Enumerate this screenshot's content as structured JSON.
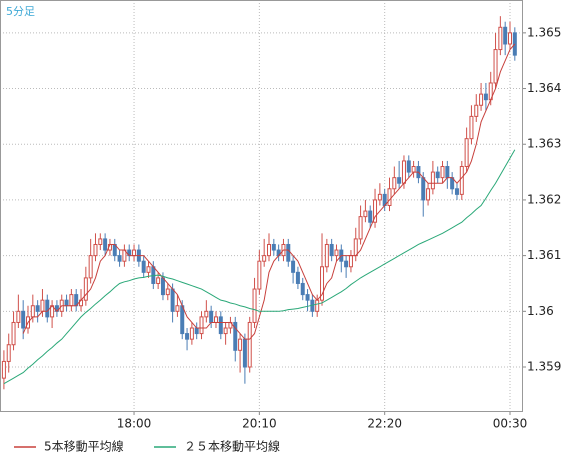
{
  "chart_data": {
    "type": "candlestick",
    "title": "5分足",
    "categories": [
      null,
      null,
      null,
      null,
      null,
      null,
      null,
      null,
      null,
      null,
      null,
      null,
      null,
      null,
      null,
      null,
      null,
      null,
      null,
      null,
      null,
      null,
      null,
      null,
      null,
      null,
      null,
      "18:00",
      null,
      null,
      null,
      null,
      null,
      null,
      null,
      null,
      null,
      null,
      null,
      null,
      null,
      null,
      null,
      null,
      null,
      null,
      null,
      null,
      null,
      null,
      null,
      null,
      null,
      "20:10",
      null,
      null,
      null,
      null,
      null,
      null,
      null,
      null,
      null,
      null,
      null,
      null,
      null,
      null,
      null,
      null,
      null,
      null,
      null,
      null,
      null,
      null,
      null,
      null,
      null,
      "22:20",
      null,
      null,
      null,
      null,
      null,
      null,
      null,
      null,
      null,
      null,
      null,
      null,
      null,
      null,
      null,
      null,
      null,
      null,
      null,
      null,
      null,
      null,
      null,
      null,
      null,
      "00:30",
      null
    ],
    "open": [
      1.3588,
      1.3591,
      1.3594,
      1.3598,
      1.36,
      1.3597,
      1.3599,
      1.3601,
      1.36,
      1.3602,
      1.3599,
      1.3601,
      1.36,
      1.3602,
      1.3601,
      1.3603,
      1.3601,
      1.3602,
      1.3606,
      1.361,
      1.3612,
      1.3613,
      1.3611,
      1.3612,
      1.361,
      1.3609,
      1.3611,
      1.361,
      1.3611,
      1.3609,
      1.3607,
      1.3608,
      1.3605,
      1.3606,
      1.3603,
      1.3604,
      1.36,
      1.3601,
      1.3596,
      1.3595,
      1.3597,
      1.3596,
      1.3599,
      1.36,
      1.3598,
      1.3599,
      1.3596,
      1.3597,
      1.3598,
      1.3593,
      1.3595,
      1.359,
      1.3598,
      1.3604,
      1.3609,
      1.361,
      1.3612,
      1.3611,
      1.361,
      1.3612,
      1.3609,
      1.3607,
      1.3605,
      1.3603,
      1.3602,
      1.36,
      1.3602,
      1.3608,
      1.3612,
      1.361,
      1.3611,
      1.3609,
      1.3608,
      1.361,
      1.3613,
      1.3617,
      1.3618,
      1.3616,
      1.362,
      1.3621,
      1.3619,
      1.3622,
      1.3624,
      1.3623,
      1.3627,
      1.3625,
      1.3626,
      1.3624,
      1.362,
      1.3622,
      1.3625,
      1.3624,
      1.3626,
      1.3624,
      1.3622,
      1.3621,
      1.3626,
      1.3631,
      1.3635,
      1.3637,
      1.3639,
      1.3638,
      1.3641,
      1.3647,
      1.3651,
      1.3648,
      1.365
    ],
    "high": [
      1.3593,
      1.3596,
      1.36,
      1.3603,
      1.3602,
      1.3601,
      1.3603,
      1.3602,
      1.3604,
      1.3603,
      1.3602,
      1.3602,
      1.3603,
      1.3603,
      1.3604,
      1.3604,
      1.3604,
      1.3608,
      1.3613,
      1.3614,
      1.3614,
      1.3614,
      1.3613,
      1.3613,
      1.3611,
      1.3612,
      1.3612,
      1.3612,
      1.3612,
      1.361,
      1.3609,
      1.3609,
      1.3607,
      1.3607,
      1.3605,
      1.3605,
      1.3603,
      1.3602,
      1.3597,
      1.3598,
      1.3598,
      1.36,
      1.3602,
      1.3601,
      1.36,
      1.36,
      1.3598,
      1.3599,
      1.3599,
      1.3596,
      1.3596,
      1.3599,
      1.3606,
      1.3611,
      1.3613,
      1.3614,
      1.3613,
      1.3612,
      1.3613,
      1.3613,
      1.361,
      1.3608,
      1.3606,
      1.3604,
      1.3603,
      1.3603,
      1.3614,
      1.3613,
      1.3613,
      1.3612,
      1.3612,
      1.361,
      1.3611,
      1.3615,
      1.3619,
      1.362,
      1.3619,
      1.3622,
      1.3623,
      1.3622,
      1.3624,
      1.3626,
      1.3627,
      1.3628,
      1.3628,
      1.3627,
      1.3627,
      1.3625,
      1.3623,
      1.3627,
      1.3626,
      1.3627,
      1.3627,
      1.3625,
      1.3623,
      1.3627,
      1.3633,
      1.3637,
      1.3639,
      1.3641,
      1.3641,
      1.3643,
      1.365,
      1.3653,
      1.3652,
      1.3652,
      1.3651
    ],
    "low": [
      1.3586,
      1.3589,
      1.3593,
      1.3597,
      1.3595,
      1.3596,
      1.3598,
      1.3598,
      1.3599,
      1.3598,
      1.3597,
      1.3599,
      1.3599,
      1.36,
      1.36,
      1.36,
      1.36,
      1.3601,
      1.3605,
      1.3609,
      1.3611,
      1.361,
      1.361,
      1.3609,
      1.3608,
      1.3608,
      1.3609,
      1.3609,
      1.3608,
      1.3606,
      1.3606,
      1.3604,
      1.3604,
      1.3602,
      1.3602,
      1.3598,
      1.3599,
      1.3595,
      1.3593,
      1.3594,
      1.3595,
      1.3595,
      1.3598,
      1.3597,
      1.3597,
      1.3595,
      1.3594,
      1.3596,
      1.3591,
      1.3589,
      1.3587,
      1.3589,
      1.3597,
      1.3603,
      1.3608,
      1.3609,
      1.361,
      1.3609,
      1.3609,
      1.3608,
      1.3605,
      1.3604,
      1.3602,
      1.36,
      1.3599,
      1.3599,
      1.3601,
      1.3607,
      1.3609,
      1.3609,
      1.3607,
      1.3606,
      1.3607,
      1.3609,
      1.3612,
      1.3616,
      1.3615,
      1.3615,
      1.3619,
      1.3618,
      1.3618,
      1.3621,
      1.3622,
      1.3622,
      1.3624,
      1.3624,
      1.3623,
      1.3617,
      1.3619,
      1.3621,
      1.3623,
      1.3623,
      1.3622,
      1.3621,
      1.362,
      1.362,
      1.3625,
      1.363,
      1.3634,
      1.3636,
      1.3636,
      1.3637,
      1.364,
      1.3646,
      1.3646,
      1.3647,
      1.3645
    ],
    "close": [
      1.3591,
      1.3594,
      1.3598,
      1.36,
      1.3597,
      1.3599,
      1.3601,
      1.36,
      1.3602,
      1.3599,
      1.3601,
      1.36,
      1.3602,
      1.3601,
      1.3603,
      1.3601,
      1.3602,
      1.3606,
      1.361,
      1.3612,
      1.3613,
      1.3611,
      1.3612,
      1.361,
      1.3609,
      1.3611,
      1.361,
      1.3611,
      1.3609,
      1.3607,
      1.3608,
      1.3605,
      1.3606,
      1.3603,
      1.3604,
      1.36,
      1.3601,
      1.3596,
      1.3595,
      1.3597,
      1.3596,
      1.3599,
      1.36,
      1.3598,
      1.3599,
      1.3596,
      1.3597,
      1.3598,
      1.3593,
      1.3595,
      1.359,
      1.3598,
      1.3604,
      1.3609,
      1.361,
      1.3612,
      1.3611,
      1.361,
      1.3612,
      1.3609,
      1.3607,
      1.3605,
      1.3603,
      1.3602,
      1.36,
      1.3602,
      1.3608,
      1.3612,
      1.361,
      1.3611,
      1.3609,
      1.3608,
      1.361,
      1.3613,
      1.3617,
      1.3618,
      1.3616,
      1.362,
      1.3621,
      1.3619,
      1.3622,
      1.3624,
      1.3623,
      1.3627,
      1.3625,
      1.3626,
      1.3624,
      1.362,
      1.3622,
      1.3625,
      1.3624,
      1.3626,
      1.3624,
      1.3622,
      1.3621,
      1.3626,
      1.3631,
      1.3635,
      1.3637,
      1.3639,
      1.3638,
      1.3641,
      1.3647,
      1.3651,
      1.3648,
      1.365,
      1.3646
    ],
    "up_color": "#d0504a",
    "down_color": "#4a7db5",
    "series": [
      {
        "name": "5本移動平均線",
        "color": "#c8403c",
        "values": [
          null,
          null,
          null,
          null,
          1.3596,
          1.3598,
          1.3599,
          1.3599,
          1.36,
          1.36,
          1.3601,
          1.36,
          1.3601,
          1.3601,
          1.3601,
          1.3601,
          1.3602,
          1.3603,
          1.3604,
          1.3606,
          1.3609,
          1.361,
          1.3612,
          1.3612,
          1.3611,
          1.3611,
          1.361,
          1.361,
          1.361,
          1.361,
          1.3609,
          1.3608,
          1.3607,
          1.3606,
          1.3605,
          1.3604,
          1.3603,
          1.3601,
          1.3599,
          1.3598,
          1.3597,
          1.3597,
          1.3597,
          1.3598,
          1.3598,
          1.3598,
          1.3598,
          1.3598,
          1.3597,
          1.3596,
          1.3595,
          1.3595,
          1.3596,
          1.3599,
          1.3602,
          1.3607,
          1.3609,
          1.361,
          1.3611,
          1.3611,
          1.361,
          1.3609,
          1.3607,
          1.3605,
          1.3603,
          1.3602,
          1.3603,
          1.3605,
          1.3606,
          1.3609,
          1.361,
          1.361,
          1.361,
          1.361,
          1.3611,
          1.3613,
          1.3615,
          1.3617,
          1.3618,
          1.3619,
          1.362,
          1.3621,
          1.3622,
          1.3623,
          1.3624,
          1.3625,
          1.3625,
          1.3624,
          1.3623,
          1.3623,
          1.3623,
          1.3623,
          1.3624,
          1.3624,
          1.3623,
          1.3624,
          1.3625,
          1.3627,
          1.363,
          1.3634,
          1.3636,
          1.3638,
          1.364,
          1.3643,
          1.3645,
          1.3647,
          1.3648
        ]
      },
      {
        "name": "２５本移動平均線",
        "color": "#2aa878",
        "values": [
          1.3587,
          1.35875,
          1.3588,
          1.35885,
          1.3589,
          1.35898,
          1.35905,
          1.35913,
          1.3592,
          1.35928,
          1.35935,
          1.35943,
          1.3595,
          1.3596,
          1.3597,
          1.3598,
          1.3599,
          1.35998,
          1.36005,
          1.36013,
          1.3602,
          1.36028,
          1.36035,
          1.36043,
          1.3605,
          1.36053,
          1.36055,
          1.36058,
          1.3606,
          1.36061,
          1.36063,
          1.36064,
          1.36065,
          1.36063,
          1.3606,
          1.36058,
          1.36055,
          1.36052,
          1.36049,
          1.36046,
          1.36043,
          1.3604,
          1.36035,
          1.3603,
          1.36025,
          1.3602,
          1.36018,
          1.36015,
          1.36013,
          1.3601,
          1.36008,
          1.36005,
          1.36003,
          1.36,
          1.36,
          1.36,
          1.36,
          1.36,
          1.36001,
          1.36003,
          1.36004,
          1.36005,
          1.36007,
          1.36009,
          1.36011,
          1.36013,
          1.36015,
          1.3602,
          1.36025,
          1.3603,
          1.36035,
          1.36041,
          1.36048,
          1.36054,
          1.3606,
          1.36065,
          1.3607,
          1.36075,
          1.3608,
          1.36085,
          1.3609,
          1.36095,
          1.361,
          1.36105,
          1.3611,
          1.36115,
          1.3612,
          1.36124,
          1.36128,
          1.36132,
          1.36136,
          1.3614,
          1.36145,
          1.3615,
          1.36155,
          1.3616,
          1.36168,
          1.36175,
          1.36183,
          1.3619,
          1.36203,
          1.36217,
          1.3623,
          1.36245,
          1.3626,
          1.36275,
          1.3629
        ]
      }
    ],
    "ylim": [
      1.35821,
      1.36559
    ],
    "yticks": [
      1.359,
      1.36,
      1.361,
      1.362,
      1.363,
      1.364,
      1.365
    ],
    "grid": true
  }
}
